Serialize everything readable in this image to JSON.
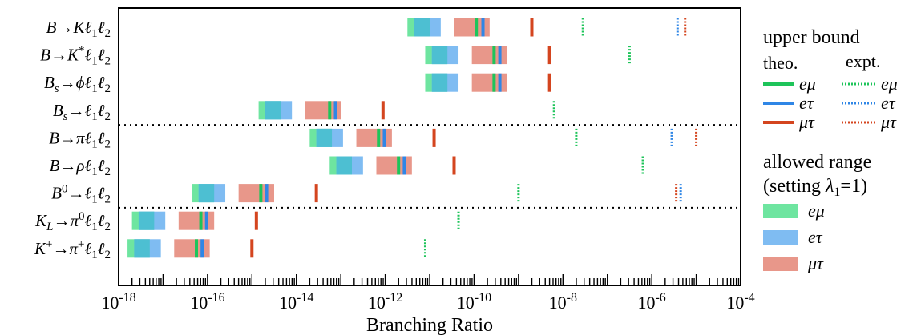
{
  "chart_data": {
    "type": "range-bar",
    "xlabel": "Branching Ratio",
    "xscale": "log",
    "xlim_exponent": [
      -18,
      -4
    ],
    "tick_labels": [
      "10^-18",
      "10^-16",
      "10^-14",
      "10^-12",
      "10^-10",
      "10^-8",
      "10^-6",
      "10^-4"
    ],
    "grid": false,
    "colors": {
      "theo_emu": "#1ec45a",
      "theo_etau": "#2f86e6",
      "theo_mutau": "#d4451f",
      "allowed_emu": "#6ee5a0",
      "allowed_etau": "#7fbcf2",
      "allowed_mutau": "#e8978a",
      "overlap": "#4dbfd2"
    },
    "rows": [
      {
        "label": {
          "pre": "B→Kℓ",
          "s1": "1",
          "mid": "ℓ",
          "s2": "2"
        },
        "emu_range": [
          -11.5,
          -11.0
        ],
        "etau_range": [
          -11.35,
          -10.75
        ],
        "mutau_range": [
          -10.45,
          -9.65
        ],
        "mutau_overlay": [
          -10.1,
          -10.0
        ],
        "theo_emu": -9.95,
        "theo_etau": -9.8,
        "theo_mutau": -8.7,
        "expt_emu": -7.55,
        "expt_etau": -5.42,
        "expt_mutau": -5.25
      },
      {
        "label": {
          "pre": "B→K",
          "sup": "*",
          "pre2": "ℓ",
          "s1": "1",
          "mid": "ℓ",
          "s2": "2"
        },
        "emu_range": [
          -11.1,
          -10.6
        ],
        "etau_range": [
          -10.95,
          -10.35
        ],
        "mutau_range": [
          -10.05,
          -9.25
        ],
        "mutau_overlay": [
          -9.6,
          -9.5
        ],
        "theo_emu": -9.55,
        "theo_etau": -9.42,
        "theo_mutau": -8.3,
        "expt_emu": -6.5,
        "expt_etau": null,
        "expt_mutau": null
      },
      {
        "label": {
          "pre": "B",
          "sub": "s",
          "pre2": "→ϕℓ",
          "s1": "1",
          "mid": "ℓ",
          "s2": "2"
        },
        "emu_range": [
          -11.1,
          -10.6
        ],
        "etau_range": [
          -10.95,
          -10.35
        ],
        "mutau_range": [
          -10.05,
          -9.25
        ],
        "mutau_overlay": [
          -9.6,
          -9.5
        ],
        "theo_emu": -9.55,
        "theo_etau": -9.42,
        "theo_mutau": -8.3,
        "expt_emu": null,
        "expt_etau": null,
        "expt_mutau": null
      },
      {
        "label": {
          "pre": "B",
          "sub": "s",
          "pre2": "→ℓ",
          "s1": "1",
          "mid": "ℓ",
          "s2": "2"
        },
        "emu_range": [
          -14.85,
          -14.35
        ],
        "etau_range": [
          -14.7,
          -14.1
        ],
        "mutau_range": [
          -13.8,
          -13.0
        ],
        "mutau_overlay": [
          -13.3,
          -13.2
        ],
        "theo_emu": -13.25,
        "theo_etau": -13.12,
        "theo_mutau": -12.05,
        "expt_emu": -8.2,
        "expt_etau": null,
        "expt_mutau": null
      },
      {
        "label": {
          "pre": "B→πℓ",
          "s1": "1",
          "mid": "ℓ",
          "s2": "2"
        },
        "emu_range": [
          -13.7,
          -13.2
        ],
        "etau_range": [
          -13.55,
          -12.95
        ],
        "mutau_range": [
          -12.65,
          -11.85
        ],
        "mutau_overlay": [
          -12.2,
          -12.1
        ],
        "theo_emu": -12.15,
        "theo_etau": -12.02,
        "theo_mutau": -10.9,
        "expt_emu": -7.7,
        "expt_etau": -5.55,
        "expt_mutau": -5.0
      },
      {
        "label": {
          "pre": "B→ρℓ",
          "s1": "1",
          "mid": "ℓ",
          "s2": "2"
        },
        "emu_range": [
          -13.25,
          -12.75
        ],
        "etau_range": [
          -13.1,
          -12.5
        ],
        "mutau_range": [
          -12.2,
          -11.4
        ],
        "mutau_overlay": [
          -11.75,
          -11.65
        ],
        "theo_emu": -11.7,
        "theo_etau": -11.57,
        "theo_mutau": -10.45,
        "expt_emu": -6.2,
        "expt_etau": null,
        "expt_mutau": null
      },
      {
        "label": {
          "pre": "B",
          "sup": "0",
          "pre2": "→ℓ",
          "s1": "1",
          "mid": "ℓ",
          "s2": "2"
        },
        "emu_range": [
          -16.35,
          -15.85
        ],
        "etau_range": [
          -16.2,
          -15.6
        ],
        "mutau_range": [
          -15.3,
          -14.5
        ],
        "mutau_overlay": [
          -14.85,
          -14.75
        ],
        "theo_emu": -14.8,
        "theo_etau": -14.67,
        "theo_mutau": -13.55,
        "expt_emu": -9.0,
        "expt_etau": -5.35,
        "expt_mutau": -5.45
      },
      {
        "label": {
          "pre": "K",
          "sub": "L",
          "pre2": "→π",
          "sup2": "0",
          "pre3": "ℓ",
          "s1": "1",
          "mid": "ℓ",
          "s2": "2"
        },
        "emu_range": [
          -17.7,
          -17.2
        ],
        "etau_range": [
          -17.55,
          -16.95
        ],
        "mutau_range": [
          -16.65,
          -15.85
        ],
        "mutau_overlay": [
          -16.2,
          -16.1
        ],
        "theo_emu": -16.15,
        "theo_etau": -16.02,
        "theo_mutau": -14.9,
        "expt_emu": -10.35,
        "expt_etau": null,
        "expt_mutau": null
      },
      {
        "label": {
          "pre": "K",
          "sup": "+",
          "pre2": "→π",
          "sup2": "+",
          "pre3": "ℓ",
          "s1": "1",
          "mid": "ℓ",
          "s2": "2"
        },
        "emu_range": [
          -17.8,
          -17.3
        ],
        "etau_range": [
          -17.65,
          -17.05
        ],
        "mutau_range": [
          -16.75,
          -15.95
        ],
        "mutau_overlay": [
          -16.3,
          -16.2
        ],
        "theo_emu": -16.25,
        "theo_etau": -16.12,
        "theo_mutau": -15.0,
        "expt_emu": -11.1,
        "expt_etau": null,
        "expt_mutau": null
      }
    ],
    "separators_after_rows": [
      3,
      6
    ],
    "legend": {
      "title_upper": "upper bound",
      "col_theo": "theo.",
      "col_expt": "expt.",
      "lines": [
        "eμ",
        "eτ",
        "μτ"
      ],
      "title_allowed_1": "allowed range",
      "title_allowed_2_pre": "(setting ",
      "title_allowed_2_lambda": "λ",
      "title_allowed_2_sub": "1",
      "title_allowed_2_post": "=1)",
      "allowed": [
        "eμ",
        "eτ",
        "μτ"
      ]
    }
  }
}
